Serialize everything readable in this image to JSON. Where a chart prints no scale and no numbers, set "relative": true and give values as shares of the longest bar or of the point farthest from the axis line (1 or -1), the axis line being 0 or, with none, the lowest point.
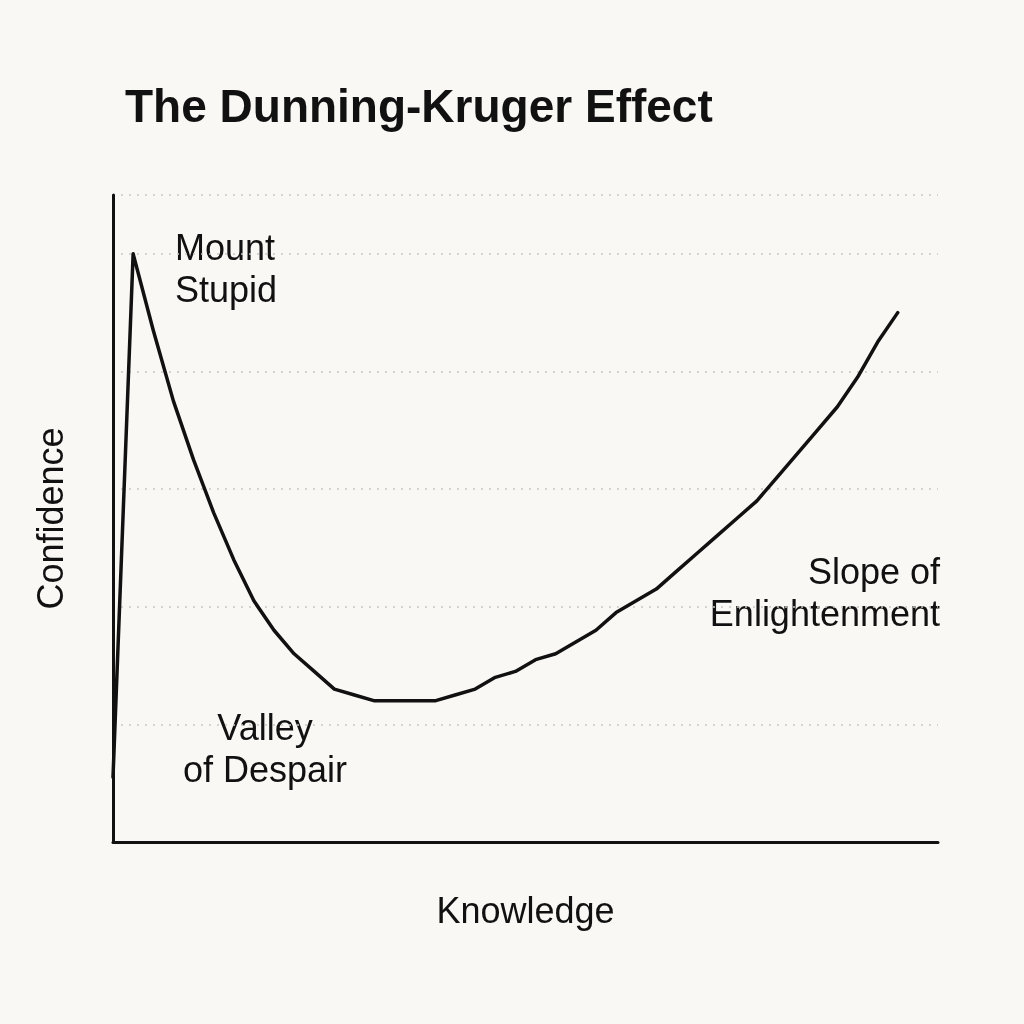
{
  "chart_data": {
    "type": "line",
    "title": "The Dunning-Kruger Effect",
    "xlabel": "Knowledge",
    "ylabel": "Confidence",
    "categories": [
      null,
      null,
      null,
      null,
      null,
      null,
      null,
      null,
      null,
      null,
      null,
      null,
      null,
      null,
      null,
      null,
      null,
      null,
      null,
      null,
      null,
      null,
      null,
      null,
      null,
      null,
      null,
      null,
      null,
      null,
      null,
      null,
      null,
      null,
      null,
      null,
      null,
      null,
      null,
      null,
      null,
      null
    ],
    "values": [
      0.11,
      1.0,
      0.87,
      0.75,
      0.65,
      0.56,
      0.48,
      0.41,
      0.36,
      0.32,
      0.29,
      0.26,
      0.25,
      0.24,
      0.24,
      0.24,
      0.24,
      0.25,
      0.26,
      0.28,
      0.29,
      0.31,
      0.32,
      0.34,
      0.36,
      0.39,
      0.41,
      0.43,
      0.46,
      0.49,
      0.52,
      0.55,
      0.58,
      0.62,
      0.66,
      0.7,
      0.74,
      0.79,
      0.85,
      0.9,
      null,
      null
    ],
    "color": "#111111",
    "relative": true,
    "grid": true,
    "marker": "none",
    "annotations": [
      "Mount\nStupid",
      "Valley\nof Despair",
      "Slope of\nEnlightenment"
    ]
  }
}
